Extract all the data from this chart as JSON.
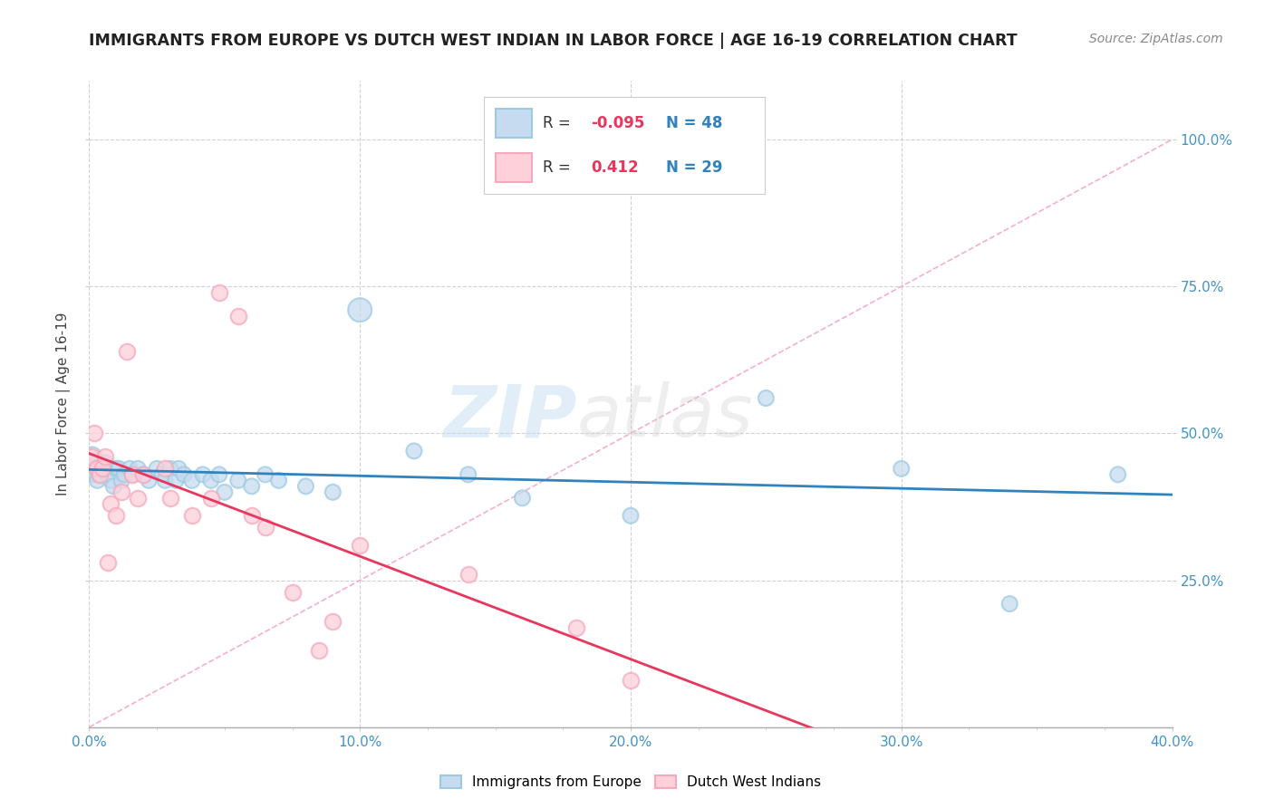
{
  "title": "IMMIGRANTS FROM EUROPE VS DUTCH WEST INDIAN IN LABOR FORCE | AGE 16-19 CORRELATION CHART",
  "source_text": "Source: ZipAtlas.com",
  "ylabel": "In Labor Force | Age 16-19",
  "xlim": [
    0.0,
    0.4
  ],
  "ylim": [
    0.0,
    1.1
  ],
  "xtick_labels": [
    "0.0%",
    "",
    "",
    "",
    "10.0%",
    "",
    "",
    "",
    "20.0%",
    "",
    "",
    "",
    "30.0%",
    "",
    "",
    "",
    "40.0%"
  ],
  "xtick_values": [
    0.0,
    0.025,
    0.05,
    0.075,
    0.1,
    0.125,
    0.15,
    0.175,
    0.2,
    0.225,
    0.25,
    0.275,
    0.3,
    0.325,
    0.35,
    0.375,
    0.4
  ],
  "ytick_labels": [
    "25.0%",
    "50.0%",
    "75.0%",
    "100.0%"
  ],
  "ytick_values": [
    0.25,
    0.5,
    0.75,
    1.0
  ],
  "blue_color": "#9ecae1",
  "pink_color": "#f4a9bc",
  "blue_fill_color": "#c6dbef",
  "pink_fill_color": "#fdd0da",
  "blue_line_color": "#3182bd",
  "pink_line_color": "#e8365d",
  "diag_line_color": "#f4a9bc",
  "tick_color": "#4393c3",
  "legend_blue_r": "-0.095",
  "legend_blue_n": "48",
  "legend_pink_r": "0.412",
  "legend_pink_n": "29",
  "blue_scatter_x": [
    0.001,
    0.001,
    0.002,
    0.002,
    0.003,
    0.003,
    0.004,
    0.005,
    0.006,
    0.007,
    0.008,
    0.009,
    0.01,
    0.011,
    0.012,
    0.013,
    0.015,
    0.016,
    0.018,
    0.02,
    0.022,
    0.025,
    0.027,
    0.028,
    0.03,
    0.032,
    0.033,
    0.035,
    0.038,
    0.042,
    0.045,
    0.048,
    0.05,
    0.055,
    0.06,
    0.065,
    0.07,
    0.08,
    0.09,
    0.1,
    0.12,
    0.14,
    0.16,
    0.2,
    0.25,
    0.3,
    0.34,
    0.38
  ],
  "blue_scatter_y": [
    0.44,
    0.46,
    0.43,
    0.45,
    0.42,
    0.44,
    0.43,
    0.44,
    0.45,
    0.43,
    0.42,
    0.41,
    0.44,
    0.44,
    0.42,
    0.43,
    0.44,
    0.43,
    0.44,
    0.43,
    0.42,
    0.44,
    0.43,
    0.42,
    0.44,
    0.42,
    0.44,
    0.43,
    0.42,
    0.43,
    0.42,
    0.43,
    0.4,
    0.42,
    0.41,
    0.43,
    0.42,
    0.41,
    0.4,
    0.71,
    0.47,
    0.43,
    0.39,
    0.36,
    0.56,
    0.44,
    0.21,
    0.43
  ],
  "blue_scatter_sizes": [
    200,
    250,
    150,
    200,
    150,
    180,
    150,
    150,
    150,
    150,
    150,
    150,
    150,
    150,
    150,
    150,
    150,
    150,
    150,
    150,
    150,
    150,
    150,
    150,
    150,
    150,
    150,
    150,
    150,
    150,
    150,
    150,
    150,
    150,
    150,
    150,
    150,
    150,
    150,
    350,
    150,
    150,
    150,
    150,
    150,
    150,
    150,
    150
  ],
  "pink_scatter_x": [
    0.001,
    0.002,
    0.003,
    0.004,
    0.005,
    0.006,
    0.007,
    0.008,
    0.01,
    0.012,
    0.014,
    0.016,
    0.018,
    0.02,
    0.028,
    0.03,
    0.038,
    0.045,
    0.048,
    0.055,
    0.06,
    0.065,
    0.075,
    0.085,
    0.09,
    0.1,
    0.14,
    0.18,
    0.2
  ],
  "pink_scatter_y": [
    0.46,
    0.5,
    0.44,
    0.43,
    0.44,
    0.46,
    0.28,
    0.38,
    0.36,
    0.4,
    0.64,
    0.43,
    0.39,
    0.43,
    0.44,
    0.39,
    0.36,
    0.39,
    0.74,
    0.7,
    0.36,
    0.34,
    0.23,
    0.13,
    0.18,
    0.31,
    0.26,
    0.17,
    0.08
  ],
  "watermark_text": "ZIPatlas",
  "background_color": "#ffffff",
  "grid_color": "#cccccc"
}
